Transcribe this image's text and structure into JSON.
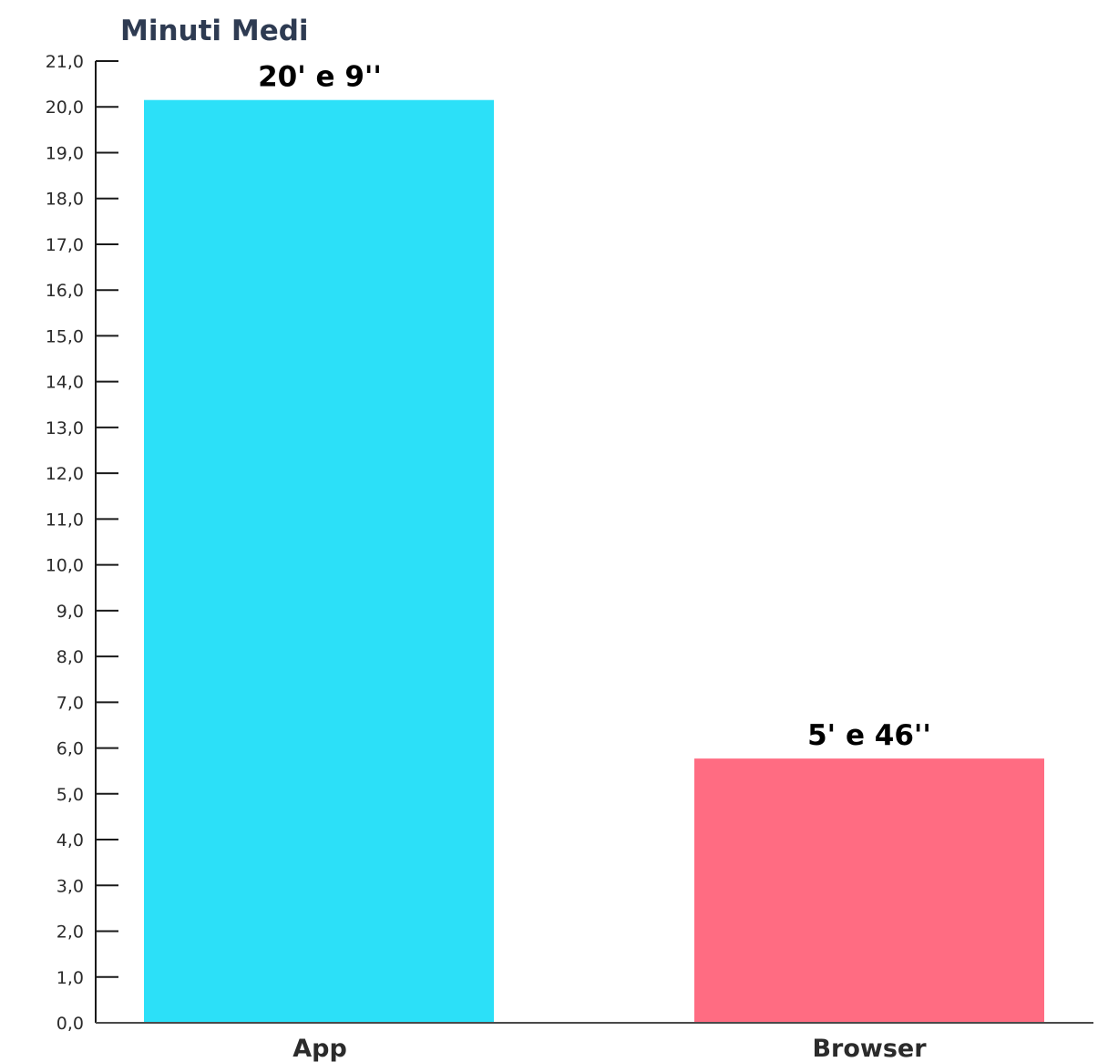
{
  "chart_data": {
    "type": "bar",
    "title": "Minuti Medi",
    "xlabel": "",
    "ylabel": "",
    "categories": [
      "App",
      "Browser"
    ],
    "values": [
      20.15,
      5.77
    ],
    "data_labels": [
      "20' e 9''",
      "5' e 46''"
    ],
    "ylim": [
      0,
      21
    ],
    "y_ticks": [
      "0,0",
      "1,0",
      "2,0",
      "3,0",
      "4,0",
      "5,0",
      "6,0",
      "7,0",
      "8,0",
      "9,0",
      "10,0",
      "11,0",
      "12,0",
      "13,0",
      "14,0",
      "15,0",
      "16,0",
      "17,0",
      "18,0",
      "19,0",
      "20,0",
      "21,0"
    ],
    "colors": [
      "#2ce0f8",
      "#ff6c82"
    ],
    "grid": false,
    "legend": "none"
  }
}
